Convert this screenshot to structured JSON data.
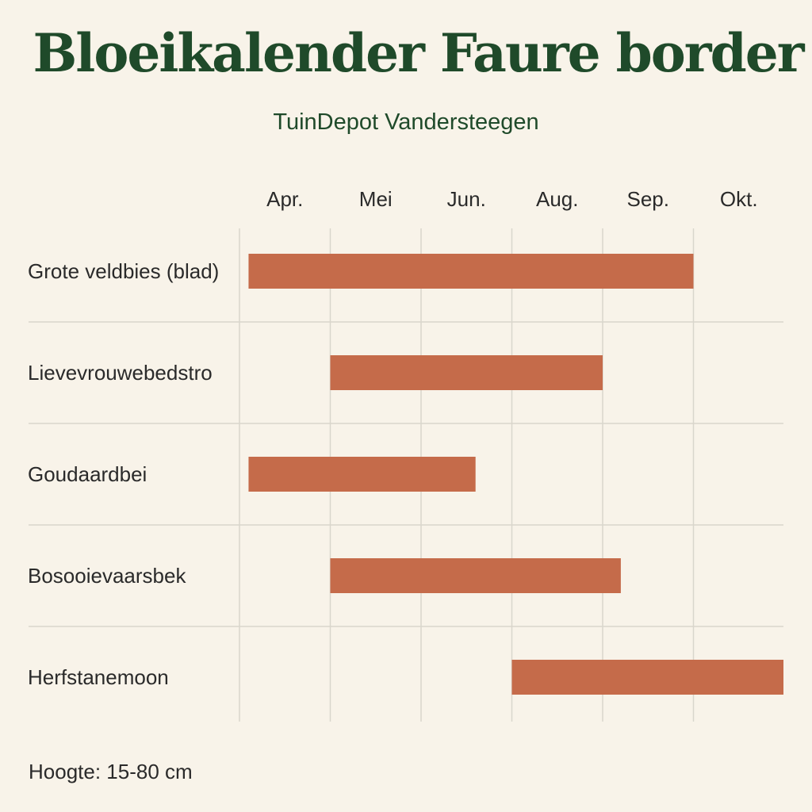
{
  "title": "Bloeikalender Faure border",
  "subtitle": "TuinDepot Vandersteegen",
  "footnote": "Hoogte: 15-80 cm",
  "colors": {
    "background": "#f8f3e9",
    "title": "#1f4a2a",
    "bar": "#c56b4a",
    "grid": "#d9d6cc",
    "text": "#2a2a2a"
  },
  "chart_data": {
    "type": "bar",
    "orientation": "horizontal",
    "x_categories": [
      "Apr.",
      "Mei",
      "Jun.",
      "Aug.",
      "Sep.",
      "Okt."
    ],
    "grid": true,
    "series": [
      {
        "label": "Grote veldbies (blad)",
        "start": 0.1,
        "end": 5.0
      },
      {
        "label": "Lievevrouwebedstro",
        "start": 1.0,
        "end": 4.0
      },
      {
        "label": "Goudaardbei",
        "start": 0.1,
        "end": 2.6
      },
      {
        "label": "Bosooievaarsbek",
        "start": 1.0,
        "end": 4.2
      },
      {
        "label": "Herfstanemoon",
        "start": 3.0,
        "end": 6.0
      }
    ]
  }
}
